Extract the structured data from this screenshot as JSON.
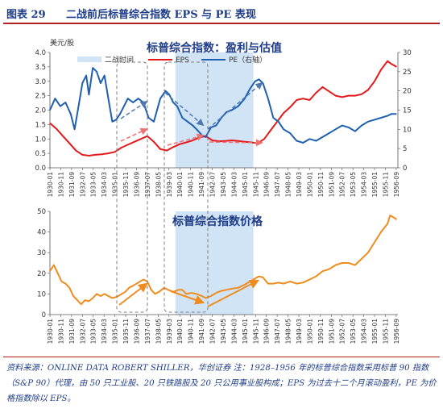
{
  "header": {
    "figure_label": "图表 29",
    "figure_title": "二战前后标普综合指数 EPS 与 PE 表现"
  },
  "footer": {
    "source": "资料来源：ONLINE DATA ROBERT SHILLER，华创证券  注：1928–1956 年的标普综合指数采用标普 90 指数（S&P 90）代理，由 50 只工业股、20 只铁路股及 20 只公用事业股构成；EPS 为过去十二个月滚动盈利，PE 为价格指数除以 EPS。"
  },
  "colors": {
    "eps": "#e3191c",
    "pe": "#1f5fb0",
    "price": "#f08c1e",
    "war_shade": "#d0e4f5",
    "arrow_blue": "#4f78b0",
    "arrow_red": "#ef6f6f",
    "arrow_orange": "#f08c1e",
    "title_text": "#1f3c88"
  },
  "chart_data": [
    {
      "type": "line",
      "title": "标普综合指数：盈利与估值",
      "ylabel_left": "美元/股",
      "ylim_left": [
        0.0,
        4.0
      ],
      "yticks_left": [
        "0.0",
        "0.5",
        "1.0",
        "1.5",
        "2.0",
        "2.5",
        "3.0",
        "3.5",
        "4.0"
      ],
      "ylim_right": [
        0,
        30
      ],
      "yticks_right": [
        "0",
        "5",
        "10",
        "15",
        "20",
        "25",
        "30"
      ],
      "xlim": [
        1930.0,
        1956.8
      ],
      "xticks": [
        "1930-01",
        "1930-11",
        "1931-09",
        "1932-07",
        "1933-05",
        "1934-03",
        "1935-01",
        "1935-11",
        "1936-09",
        "1937-07",
        "1938-05",
        "1939-03",
        "1940-01",
        "1940-11",
        "1941-09",
        "1942-07",
        "1943-05",
        "1944-03",
        "1945-01",
        "1945-11",
        "1946-09",
        "1947-07",
        "1948-05",
        "1949-03",
        "1950-01",
        "1950-11",
        "1951-09",
        "1952-07",
        "1953-05",
        "1954-03",
        "1955-01",
        "1955-11",
        "1956-09"
      ],
      "legend": [
        "二战时间",
        "EPS",
        "PE（右轴）"
      ],
      "shaded_period": [
        1939.67,
        1945.67
      ],
      "series": [
        {
          "name": "EPS",
          "axis": "left",
          "points": [
            [
              1930.0,
              1.55
            ],
            [
              1930.5,
              1.35
            ],
            [
              1931.0,
              1.1
            ],
            [
              1931.5,
              0.85
            ],
            [
              1932.0,
              0.6
            ],
            [
              1932.5,
              0.45
            ],
            [
              1933.0,
              0.42
            ],
            [
              1933.5,
              0.45
            ],
            [
              1934.0,
              0.47
            ],
            [
              1934.5,
              0.5
            ],
            [
              1935.0,
              0.55
            ],
            [
              1935.5,
              0.7
            ],
            [
              1936.0,
              0.8
            ],
            [
              1936.5,
              0.9
            ],
            [
              1937.0,
              1.0
            ],
            [
              1937.5,
              1.1
            ],
            [
              1938.0,
              0.9
            ],
            [
              1938.5,
              0.65
            ],
            [
              1939.0,
              0.6
            ],
            [
              1939.5,
              0.72
            ],
            [
              1940.0,
              0.82
            ],
            [
              1940.5,
              0.88
            ],
            [
              1941.0,
              0.95
            ],
            [
              1941.5,
              1.05
            ],
            [
              1942.0,
              1.1
            ],
            [
              1942.5,
              0.95
            ],
            [
              1943.0,
              0.92
            ],
            [
              1943.5,
              0.93
            ],
            [
              1944.0,
              0.95
            ],
            [
              1944.5,
              0.93
            ],
            [
              1945.0,
              0.9
            ],
            [
              1945.5,
              0.88
            ],
            [
              1946.0,
              0.85
            ],
            [
              1946.5,
              1.0
            ],
            [
              1947.0,
              1.3
            ],
            [
              1947.5,
              1.6
            ],
            [
              1948.0,
              1.9
            ],
            [
              1948.5,
              2.1
            ],
            [
              1949.0,
              2.35
            ],
            [
              1949.5,
              2.4
            ],
            [
              1950.0,
              2.35
            ],
            [
              1950.5,
              2.6
            ],
            [
              1951.0,
              2.8
            ],
            [
              1951.5,
              2.65
            ],
            [
              1952.0,
              2.5
            ],
            [
              1952.5,
              2.45
            ],
            [
              1953.0,
              2.5
            ],
            [
              1953.5,
              2.5
            ],
            [
              1954.0,
              2.55
            ],
            [
              1954.5,
              2.7
            ],
            [
              1955.0,
              3.0
            ],
            [
              1955.5,
              3.4
            ],
            [
              1956.0,
              3.7
            ],
            [
              1956.3,
              3.6
            ],
            [
              1956.7,
              3.5
            ]
          ]
        },
        {
          "name": "PE（右轴）",
          "axis": "right",
          "points": [
            [
              1930.0,
              15.0
            ],
            [
              1930.4,
              18.0
            ],
            [
              1930.8,
              16.0
            ],
            [
              1931.2,
              17.0
            ],
            [
              1931.6,
              14.0
            ],
            [
              1931.9,
              10.0
            ],
            [
              1932.2,
              16.0
            ],
            [
              1932.5,
              22.0
            ],
            [
              1932.8,
              24.0
            ],
            [
              1933.0,
              19.0
            ],
            [
              1933.3,
              26.0
            ],
            [
              1933.6,
              25.0
            ],
            [
              1933.9,
              22.0
            ],
            [
              1934.2,
              24.0
            ],
            [
              1934.5,
              18.0
            ],
            [
              1934.8,
              12.0
            ],
            [
              1935.1,
              12.5
            ],
            [
              1935.4,
              14.0
            ],
            [
              1935.7,
              16.0
            ],
            [
              1936.0,
              18.0
            ],
            [
              1936.4,
              17.0
            ],
            [
              1936.8,
              18.0
            ],
            [
              1937.2,
              17.0
            ],
            [
              1937.6,
              13.0
            ],
            [
              1938.0,
              12.0
            ],
            [
              1938.5,
              18.0
            ],
            [
              1938.9,
              20.0
            ],
            [
              1939.2,
              19.0
            ],
            [
              1939.5,
              17.0
            ],
            [
              1939.8,
              16.0
            ],
            [
              1940.2,
              13.0
            ],
            [
              1940.6,
              12.0
            ],
            [
              1941.0,
              11.0
            ],
            [
              1941.3,
              10.0
            ],
            [
              1941.7,
              8.5
            ],
            [
              1942.0,
              8.0
            ],
            [
              1942.4,
              10.5
            ],
            [
              1942.8,
              11.0
            ],
            [
              1943.2,
              13.0
            ],
            [
              1943.6,
              14.5
            ],
            [
              1944.0,
              15.0
            ],
            [
              1944.5,
              16.0
            ],
            [
              1945.0,
              18.0
            ],
            [
              1945.4,
              20.5
            ],
            [
              1945.8,
              22.5
            ],
            [
              1946.1,
              23.0
            ],
            [
              1946.4,
              22.0
            ],
            [
              1946.8,
              18.0
            ],
            [
              1947.2,
              13.0
            ],
            [
              1947.6,
              12.0
            ],
            [
              1948.0,
              10.0
            ],
            [
              1948.5,
              9.0
            ],
            [
              1949.0,
              7.0
            ],
            [
              1949.5,
              6.5
            ],
            [
              1950.0,
              7.5
            ],
            [
              1950.5,
              7.0
            ],
            [
              1951.0,
              8.0
            ],
            [
              1951.5,
              9.0
            ],
            [
              1952.0,
              10.0
            ],
            [
              1952.5,
              11.0
            ],
            [
              1953.0,
              10.5
            ],
            [
              1953.5,
              9.5
            ],
            [
              1954.0,
              11.0
            ],
            [
              1954.5,
              12.0
            ],
            [
              1955.0,
              12.5
            ],
            [
              1955.5,
              13.0
            ],
            [
              1956.0,
              13.5
            ],
            [
              1956.3,
              14.0
            ],
            [
              1956.7,
              14.0
            ]
          ]
        }
      ]
    },
    {
      "type": "line",
      "title": "标普综合指数价格",
      "ylim": [
        0,
        50
      ],
      "yticks": [
        "0",
        "10",
        "20",
        "30",
        "40",
        "50"
      ],
      "xlim": [
        1930.0,
        1956.8
      ],
      "xticks": [
        "1930-01",
        "1930-11",
        "1931-09",
        "1932-07",
        "1933-05",
        "1934-03",
        "1935-01",
        "1935-11",
        "1936-09",
        "1937-07",
        "1938-05",
        "1939-03",
        "1940-01",
        "1940-11",
        "1941-09",
        "1942-07",
        "1943-05",
        "1944-03",
        "1945-01",
        "1945-11",
        "1946-09",
        "1947-07",
        "1948-05",
        "1949-03",
        "1950-01",
        "1950-11",
        "1951-09",
        "1952-07",
        "1953-05",
        "1954-03",
        "1955-01",
        "1955-11",
        "1956-09"
      ],
      "shaded_period": [
        1939.67,
        1945.67
      ],
      "series": [
        {
          "name": "",
          "points": [
            [
              1930.0,
              21.0
            ],
            [
              1930.3,
              24.0
            ],
            [
              1930.6,
              20.0
            ],
            [
              1930.9,
              16.0
            ],
            [
              1931.2,
              15.0
            ],
            [
              1931.5,
              13.0
            ],
            [
              1931.8,
              9.0
            ],
            [
              1932.1,
              7.0
            ],
            [
              1932.4,
              5.0
            ],
            [
              1932.7,
              7.0
            ],
            [
              1933.0,
              6.5
            ],
            [
              1933.3,
              8.0
            ],
            [
              1933.6,
              10.0
            ],
            [
              1933.9,
              9.0
            ],
            [
              1934.2,
              10.0
            ],
            [
              1934.5,
              9.0
            ],
            [
              1934.8,
              8.0
            ],
            [
              1935.1,
              8.5
            ],
            [
              1935.4,
              9.5
            ],
            [
              1935.8,
              11.0
            ],
            [
              1936.1,
              13.0
            ],
            [
              1936.4,
              14.0
            ],
            [
              1936.8,
              15.5
            ],
            [
              1937.2,
              17.0
            ],
            [
              1937.5,
              16.0
            ],
            [
              1937.8,
              12.0
            ],
            [
              1938.1,
              10.0
            ],
            [
              1938.4,
              11.0
            ],
            [
              1938.8,
              13.0
            ],
            [
              1939.1,
              12.0
            ],
            [
              1939.5,
              11.0
            ],
            [
              1939.9,
              12.0
            ],
            [
              1940.2,
              12.0
            ],
            [
              1940.5,
              10.0
            ],
            [
              1940.9,
              10.5
            ],
            [
              1941.3,
              10.0
            ],
            [
              1941.7,
              9.0
            ],
            [
              1942.0,
              8.0
            ],
            [
              1942.4,
              9.0
            ],
            [
              1942.8,
              10.5
            ],
            [
              1943.2,
              11.5
            ],
            [
              1943.6,
              12.0
            ],
            [
              1944.0,
              12.5
            ],
            [
              1944.5,
              13.0
            ],
            [
              1945.0,
              14.5
            ],
            [
              1945.4,
              16.0
            ],
            [
              1945.8,
              17.5
            ],
            [
              1946.1,
              18.5
            ],
            [
              1946.4,
              18.0
            ],
            [
              1946.8,
              15.0
            ],
            [
              1947.2,
              15.0
            ],
            [
              1947.6,
              15.5
            ],
            [
              1948.0,
              15.0
            ],
            [
              1948.5,
              16.0
            ],
            [
              1949.0,
              15.0
            ],
            [
              1949.5,
              15.5
            ],
            [
              1950.0,
              17.0
            ],
            [
              1950.5,
              18.5
            ],
            [
              1951.0,
              21.0
            ],
            [
              1951.5,
              22.0
            ],
            [
              1952.0,
              24.0
            ],
            [
              1952.5,
              25.0
            ],
            [
              1953.0,
              25.0
            ],
            [
              1953.5,
              24.0
            ],
            [
              1954.0,
              27.0
            ],
            [
              1954.5,
              30.0
            ],
            [
              1955.0,
              35.0
            ],
            [
              1955.5,
              40.0
            ],
            [
              1956.0,
              44.0
            ],
            [
              1956.2,
              48.0
            ],
            [
              1956.5,
              47.0
            ],
            [
              1956.7,
              46.0
            ]
          ]
        }
      ]
    }
  ]
}
